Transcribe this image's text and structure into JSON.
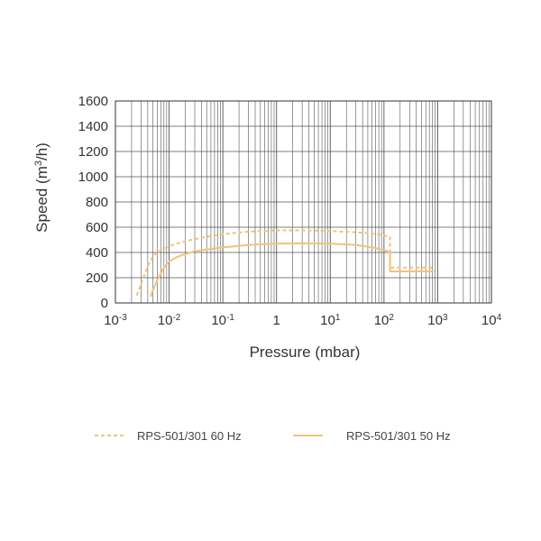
{
  "chart_data": {
    "type": "line",
    "xlabel": "Pressure (mbar)",
    "ylabel_main": "Speed (m",
    "ylabel_sup": "3",
    "ylabel_tail": "/h)",
    "x_scale": "log",
    "xlim": [
      0.001,
      10000
    ],
    "ylim": [
      0,
      1600
    ],
    "x_ticks": [
      {
        "base": "10",
        "exp": "-3"
      },
      {
        "base": "10",
        "exp": "-2"
      },
      {
        "base": "10",
        "exp": "-1"
      },
      {
        "base": "1",
        "exp": ""
      },
      {
        "base": "10",
        "exp": "1"
      },
      {
        "base": "10",
        "exp": "2"
      },
      {
        "base": "10",
        "exp": "3"
      },
      {
        "base": "10",
        "exp": "4"
      }
    ],
    "y_ticks": [
      "0",
      "200",
      "400",
      "600",
      "800",
      "1000",
      "1200",
      "1400",
      "1600"
    ],
    "grid": true,
    "legend_position": "bottom",
    "series": [
      {
        "name": "RPS-501/301 60 Hz",
        "style": "dashed",
        "color": "#f2c27a",
        "x": [
          0.0025,
          0.003,
          0.004,
          0.005,
          0.007,
          0.01,
          0.02,
          0.05,
          0.1,
          0.3,
          1,
          3,
          10,
          30,
          60,
          100,
          130,
          130,
          200,
          400,
          800
        ],
        "y": [
          60,
          150,
          290,
          370,
          420,
          450,
          490,
          525,
          545,
          565,
          575,
          575,
          570,
          560,
          550,
          535,
          520,
          280,
          280,
          280,
          280
        ]
      },
      {
        "name": "RPS-501/301 50 Hz",
        "style": "solid",
        "color": "#f2c27a",
        "x": [
          0.0045,
          0.005,
          0.006,
          0.008,
          0.01,
          0.015,
          0.03,
          0.1,
          0.3,
          1,
          3,
          10,
          30,
          60,
          100,
          130,
          130,
          200,
          400,
          850
        ],
        "y": [
          50,
          100,
          180,
          280,
          330,
          370,
          410,
          440,
          460,
          470,
          472,
          470,
          460,
          440,
          420,
          400,
          250,
          250,
          250,
          250
        ]
      }
    ]
  }
}
